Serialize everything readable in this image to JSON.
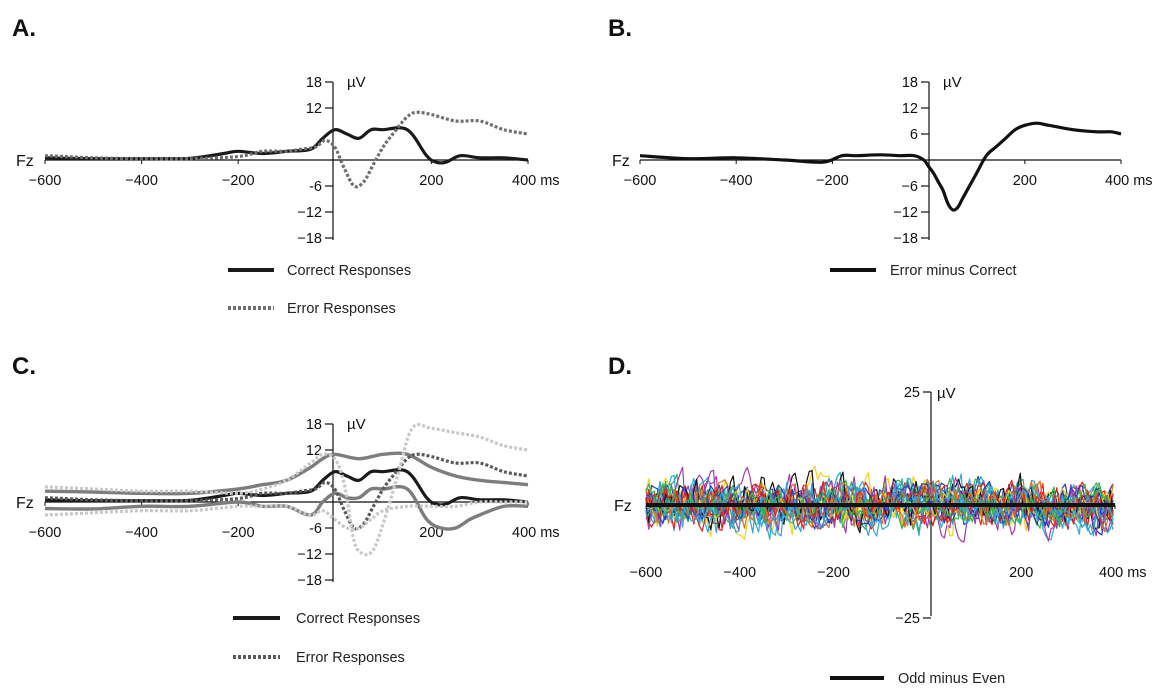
{
  "chart_data": [
    {
      "id": "A",
      "type": "line",
      "panel_label": "A.",
      "electrode": "Fz",
      "unit": "µV",
      "x_unit": "ms",
      "xlim": [
        -600,
        400
      ],
      "ylim": [
        -18,
        18
      ],
      "x_ticks": [
        "−600",
        "−400",
        "−200",
        "200",
        "400 ms"
      ],
      "y_ticks": [
        "18",
        "12",
        "-6",
        "−12",
        "−18"
      ],
      "series": [
        {
          "name": "Correct Responses",
          "style": "solid",
          "color": "#1a1a1a",
          "x": [
            -600,
            -500,
            -400,
            -300,
            -230,
            -200,
            -150,
            -100,
            -50,
            -25,
            0,
            25,
            50,
            75,
            100,
            150,
            190,
            210,
            230,
            260,
            300,
            350,
            400
          ],
          "y": [
            0.5,
            0.3,
            0.3,
            0.4,
            1.5,
            2,
            1.5,
            2,
            2.5,
            5,
            7,
            6,
            5,
            7,
            7,
            7,
            1,
            -0.5,
            -0.5,
            1,
            0.5,
            0.5,
            0
          ]
        },
        {
          "name": "Error Responses",
          "style": "dotted",
          "color": "#6f6f6f",
          "x": [
            -600,
            -500,
            -400,
            -300,
            -200,
            -150,
            -100,
            -70,
            -40,
            -20,
            0,
            20,
            40,
            60,
            80,
            100,
            120,
            150,
            170,
            200,
            250,
            300,
            350,
            400
          ],
          "y": [
            1,
            0.5,
            0.3,
            0.3,
            0.8,
            2,
            2,
            2.5,
            3,
            4.5,
            3,
            -2,
            -6,
            -5,
            -1,
            3,
            6,
            10,
            11,
            10.5,
            9,
            9,
            7,
            6
          ]
        }
      ]
    },
    {
      "id": "B",
      "type": "line",
      "panel_label": "B.",
      "electrode": "Fz",
      "unit": "µV",
      "x_unit": "ms",
      "xlim": [
        -600,
        400
      ],
      "ylim": [
        -18,
        18
      ],
      "x_ticks": [
        "−600",
        "−400",
        "−200",
        "200",
        "400 ms"
      ],
      "y_ticks": [
        "18",
        "12",
        "6",
        "−6",
        "−12",
        "−18"
      ],
      "series": [
        {
          "name": "Error minus Correct",
          "style": "solid",
          "color": "#111111",
          "x": [
            -600,
            -500,
            -400,
            -300,
            -220,
            -180,
            -150,
            -100,
            -60,
            -30,
            -10,
            0,
            10,
            20,
            30,
            40,
            50,
            60,
            70,
            80,
            100,
            120,
            140,
            160,
            180,
            200,
            225,
            250,
            300,
            350,
            380,
            400
          ],
          "y": [
            1,
            0.3,
            0.5,
            0,
            -0.5,
            1,
            1,
            1.2,
            1,
            1,
            0,
            -1.5,
            -3,
            -5,
            -7,
            -10,
            -11.5,
            -11,
            -9,
            -7,
            -3,
            1,
            3,
            5,
            7,
            8,
            8.5,
            8,
            7,
            6.5,
            6.5,
            6
          ]
        }
      ]
    },
    {
      "id": "C",
      "type": "line",
      "panel_label": "C.",
      "electrode": "Fz",
      "unit": "µV",
      "x_unit": "ms",
      "xlim": [
        -600,
        400
      ],
      "ylim": [
        -18,
        18
      ],
      "x_ticks": [
        "−600",
        "−400",
        "−200",
        "200",
        "400 ms"
      ],
      "y_ticks": [
        "18",
        "12",
        "-6",
        "−12",
        "−18"
      ],
      "legend": [
        "Correct Responses",
        "Error Responses"
      ],
      "series": [
        {
          "style": "solid",
          "color": "#1a1a1a",
          "width": 3.2,
          "x": [
            -600,
            -500,
            -400,
            -300,
            -230,
            -200,
            -150,
            -100,
            -50,
            -25,
            0,
            25,
            50,
            75,
            100,
            150,
            190,
            210,
            230,
            260,
            300,
            350,
            400
          ],
          "y": [
            0.5,
            0.3,
            0.3,
            0.4,
            1.5,
            2,
            1.5,
            2,
            2.5,
            5,
            7,
            6,
            5,
            7,
            7,
            7,
            1,
            -0.5,
            -0.5,
            1,
            0.5,
            0.5,
            0
          ]
        },
        {
          "style": "solid",
          "color": "#7d7d7d",
          "width": 3.4,
          "x": [
            -600,
            -500,
            -400,
            -300,
            -200,
            -150,
            -100,
            -50,
            -25,
            0,
            50,
            100,
            150,
            200,
            250,
            300,
            350,
            400
          ],
          "y": [
            2.5,
            2.3,
            2,
            2,
            3,
            4,
            5,
            8,
            10,
            11,
            10,
            11,
            11,
            8,
            6,
            5,
            4.5,
            4
          ]
        },
        {
          "style": "solid",
          "color": "#7d7d7d",
          "width": 3.4,
          "x": [
            -600,
            -500,
            -400,
            -300,
            -200,
            -150,
            -100,
            -50,
            -25,
            0,
            25,
            50,
            75,
            100,
            150,
            190,
            220,
            250,
            280,
            300,
            350,
            400
          ],
          "y": [
            -1.5,
            -1.6,
            -1,
            -1,
            0,
            -1,
            -1,
            -3,
            0,
            2,
            1,
            1,
            3,
            3,
            3,
            -4,
            -6,
            -6,
            -4,
            -3,
            -1,
            -1
          ]
        },
        {
          "style": "dotted",
          "color": "#5a5a5a",
          "width": 3.2,
          "x": [
            -600,
            -500,
            -400,
            -300,
            -200,
            -150,
            -100,
            -70,
            -40,
            -20,
            0,
            20,
            40,
            60,
            80,
            100,
            120,
            150,
            170,
            200,
            250,
            300,
            350,
            400
          ],
          "y": [
            1,
            0.5,
            0.3,
            0.3,
            0.8,
            2,
            2,
            2.5,
            3,
            4.5,
            3,
            -2,
            -6,
            -5,
            -1,
            3,
            6,
            10,
            11,
            10.5,
            9,
            9,
            7,
            6
          ]
        },
        {
          "style": "dotted",
          "color": "#c8c8c8",
          "width": 3.2,
          "x": [
            -600,
            -500,
            -400,
            -300,
            -200,
            -150,
            -100,
            -50,
            -25,
            0,
            20,
            40,
            60,
            80,
            100,
            130,
            160,
            200,
            250,
            300,
            350,
            400
          ],
          "y": [
            3.5,
            3,
            2.5,
            2.5,
            2,
            3,
            5,
            9,
            11,
            10,
            4,
            -9,
            -12,
            -11,
            -5,
            6,
            17,
            17,
            16,
            15,
            13,
            12
          ]
        },
        {
          "style": "dotted",
          "color": "#c8c8c8",
          "width": 3.2,
          "x": [
            -600,
            -500,
            -400,
            -300,
            -200,
            -150,
            -100,
            -50,
            -25,
            0,
            25,
            50,
            75,
            100,
            150,
            200,
            250,
            300,
            350,
            400
          ],
          "y": [
            -3,
            -2.5,
            -2,
            -2,
            -1,
            -1,
            -1,
            -3,
            -2,
            -4,
            -6,
            -6,
            -4,
            -2,
            -1,
            -1,
            -1,
            0,
            0,
            0
          ]
        }
      ]
    },
    {
      "id": "D",
      "type": "line",
      "panel_label": "D.",
      "electrode": "Fz",
      "unit": "µV",
      "x_unit": "ms",
      "xlim": [
        -600,
        400
      ],
      "ylim": [
        -25,
        25
      ],
      "x_ticks": [
        "−600",
        "−400",
        "−200",
        "200",
        "400 ms"
      ],
      "y_ticks": [
        "25",
        "−25"
      ],
      "series": [
        {
          "name": "Odd minus Even",
          "style": "solid",
          "color": "#111111",
          "width": 4,
          "x": [
            -600,
            -500,
            -400,
            -300,
            -200,
            -100,
            0,
            100,
            200,
            300,
            400
          ],
          "y": [
            0,
            0,
            0,
            0,
            0,
            0,
            0,
            0,
            0,
            0,
            0
          ]
        }
      ],
      "noise_traces": {
        "count": 24,
        "colors": [
          "#1f3fbf",
          "#e8201a",
          "#38b34a",
          "#111111",
          "#a23ca8",
          "#f2d21a",
          "#2fa8d8",
          "#e86a1a",
          "#1f3fbf",
          "#e8201a",
          "#38b34a",
          "#2fa8d8"
        ]
      }
    }
  ]
}
